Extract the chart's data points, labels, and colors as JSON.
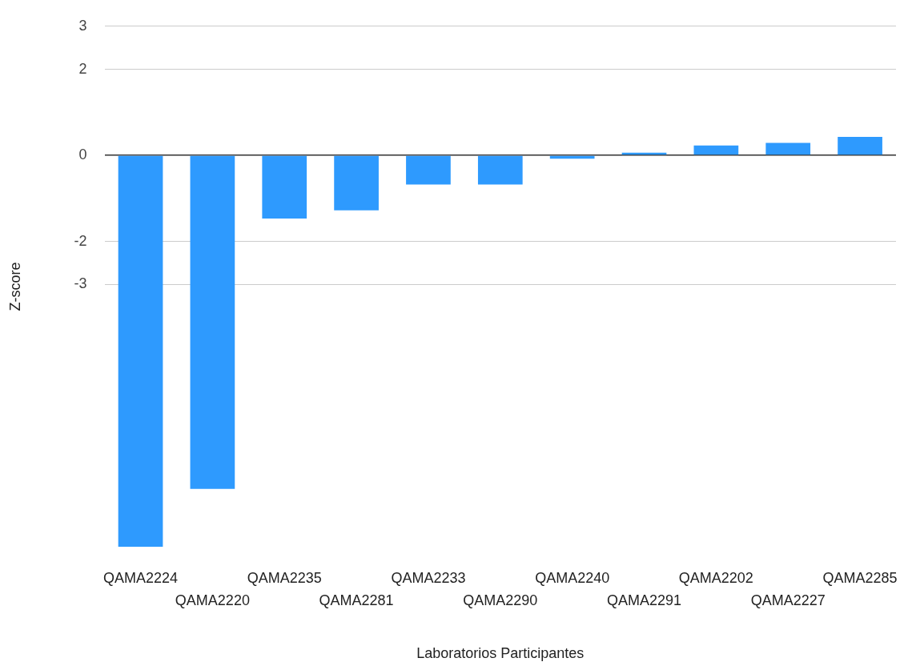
{
  "chart_data": {
    "type": "bar",
    "xlabel": "Laboratorios Participantes",
    "ylabel": "Z-score",
    "categories": [
      "QAMA2224",
      "QAMA2220",
      "QAMA2235",
      "QAMA2281",
      "QAMA2233",
      "QAMA2290",
      "QAMA2240",
      "QAMA2291",
      "QAMA2202",
      "QAMA2227",
      "QAMA2285"
    ],
    "values": [
      -9.1,
      -7.75,
      -1.47,
      -1.28,
      -0.68,
      -0.68,
      -0.08,
      0.06,
      0.23,
      0.29,
      0.43
    ],
    "color": "#2e9afe",
    "ylim": [
      -9.1,
      3
    ],
    "yticks": [
      3,
      2,
      0,
      -2,
      -3
    ],
    "grid": "y",
    "legend": false
  }
}
